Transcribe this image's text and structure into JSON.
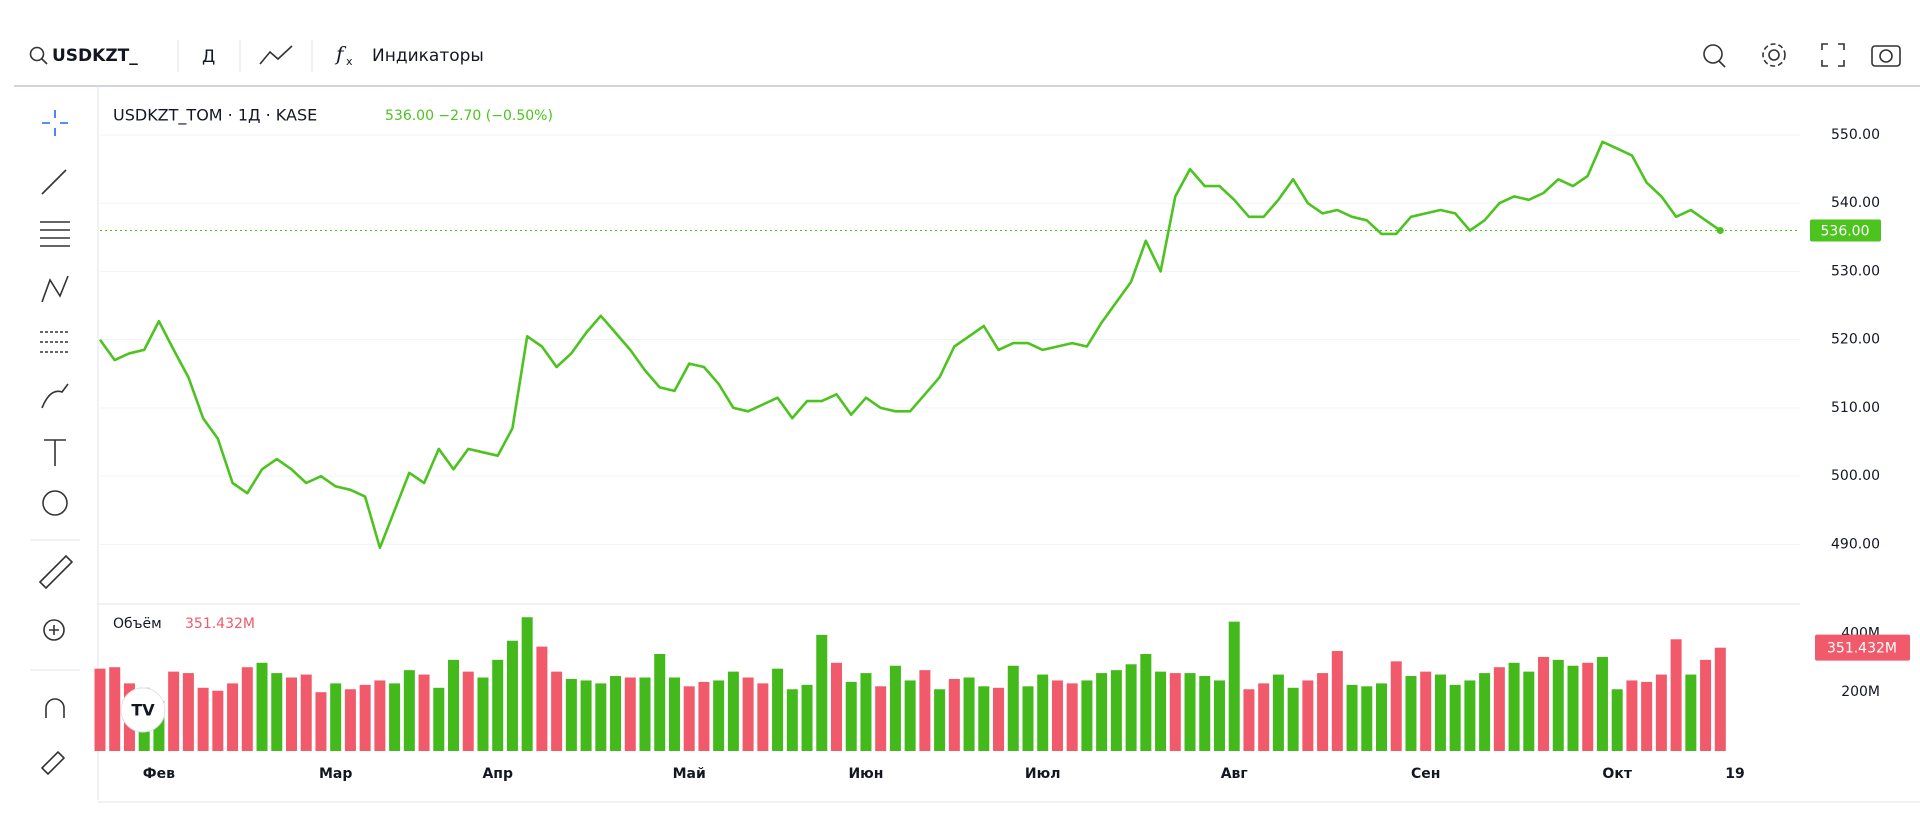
{
  "toolbar": {
    "symbol": "USDKZT_",
    "interval": "Д",
    "indicators": "Индикаторы"
  },
  "chart_data": [
    {
      "type": "line",
      "title": "USDKZT_TOM · 1Д · KASE",
      "subtitle": "536.00 −2.70 (−0.50%)",
      "color": "#4cc31f",
      "grid": true,
      "ylim": [
        482,
        556
      ],
      "yticks": [
        {
          "value": 490,
          "label": "490.00"
        },
        {
          "value": 500,
          "label": "500.00"
        },
        {
          "value": 510,
          "label": "510.00"
        },
        {
          "value": 520,
          "label": "520.00"
        },
        {
          "value": 530,
          "label": "530.00"
        },
        {
          "value": 540,
          "label": "540.00"
        },
        {
          "value": 550,
          "label": "550.00"
        }
      ],
      "last_label": {
        "value": 536,
        "label": "536.00"
      },
      "values": [
        520,
        517,
        518,
        518.5,
        522.7,
        518.5,
        514.5,
        508.5,
        505.5,
        499,
        497.5,
        501,
        502.5,
        501,
        499,
        500,
        498.5,
        498,
        497,
        489.5,
        495,
        500.5,
        499,
        504,
        501,
        504,
        503.5,
        503,
        507,
        520.5,
        519,
        516,
        518,
        521,
        523.5,
        521,
        518.5,
        515.5,
        513,
        512.5,
        516.5,
        516,
        513.5,
        510,
        509.5,
        510.5,
        511.5,
        508.5,
        511,
        511,
        512,
        509,
        511.5,
        510,
        509.5,
        509.5,
        512,
        514.5,
        519,
        520.5,
        522,
        518.5,
        519.5,
        519.5,
        518.5,
        519,
        519.5,
        519,
        522.5,
        525.5,
        528.5,
        534.5,
        530,
        541,
        545,
        542.5,
        542.5,
        540.5,
        538,
        538,
        540.5,
        543.5,
        540,
        538.5,
        539,
        538,
        537.5,
        535.5,
        535.5,
        538,
        538.5,
        539,
        538.5,
        536,
        537.5,
        540,
        541,
        540.5,
        541.5,
        543.5,
        542.5,
        544,
        549,
        548,
        547,
        543,
        541,
        538,
        539,
        537.5,
        536
      ]
    },
    {
      "type": "bar",
      "title": "Объём",
      "ylim": [
        0,
        483
      ],
      "yticks": [
        {
          "value": 200,
          "label": "200M"
        },
        {
          "value": 400,
          "label": "400M"
        }
      ],
      "last_label": {
        "value": 351.432,
        "label": "351.432M"
      },
      "categories": [
        null,
        null,
        null,
        null,
        "Фев",
        null,
        null,
        null,
        null,
        null,
        null,
        null,
        null,
        null,
        null,
        null,
        "Мар",
        null,
        null,
        null,
        null,
        null,
        null,
        null,
        null,
        null,
        null,
        "Апр",
        null,
        null,
        null,
        null,
        null,
        null,
        null,
        null,
        null,
        null,
        null,
        null,
        "Май",
        null,
        null,
        null,
        null,
        null,
        null,
        null,
        null,
        null,
        null,
        null,
        "Июн",
        null,
        null,
        null,
        null,
        null,
        null,
        null,
        null,
        null,
        null,
        null,
        "Июл",
        null,
        null,
        null,
        null,
        null,
        null,
        null,
        null,
        null,
        null,
        null,
        null,
        "Авг",
        null,
        null,
        null,
        null,
        null,
        null,
        null,
        null,
        null,
        null,
        null,
        null,
        "Сен",
        null,
        null,
        null,
        null,
        null,
        null,
        null,
        null,
        null,
        null,
        null,
        null,
        "Окт",
        null,
        null,
        null,
        null,
        null,
        null,
        null,
        "19"
      ],
      "values": [
        280,
        285,
        230,
        215,
        170,
        270,
        265,
        215,
        205,
        230,
        285,
        300,
        265,
        250,
        260,
        200,
        230,
        210,
        225,
        240,
        230,
        275,
        260,
        215,
        310,
        270,
        250,
        310,
        375,
        455,
        355,
        270,
        245,
        240,
        230,
        255,
        250,
        250,
        330,
        250,
        220,
        235,
        240,
        270,
        250,
        230,
        280,
        210,
        225,
        395,
        300,
        235,
        265,
        220,
        290,
        240,
        275,
        210,
        245,
        250,
        220,
        215,
        290,
        220,
        260,
        240,
        230,
        240,
        265,
        275,
        295,
        330,
        270,
        265,
        265,
        255,
        240,
        440,
        210,
        230,
        260,
        215,
        240,
        265,
        340,
        225,
        220,
        230,
        305,
        255,
        270,
        260,
        225,
        240,
        265,
        285,
        300,
        270,
        320,
        310,
        290,
        300,
        320,
        210,
        240,
        235,
        260,
        380,
        260,
        310,
        351.432,
        null
      ],
      "colors": [
        "#f05a6a",
        "#f05a6a",
        "#f05a6a",
        "#43b91b",
        "#43b91b",
        "#f05a6a",
        "#f05a6a",
        "#f05a6a",
        "#f05a6a",
        "#f05a6a",
        "#f05a6a",
        "#43b91b",
        "#43b91b",
        "#f05a6a",
        "#f05a6a",
        "#f05a6a",
        "#43b91b",
        "#f05a6a",
        "#f05a6a",
        "#f05a6a",
        "#43b91b",
        "#43b91b",
        "#f05a6a",
        "#43b91b",
        "#43b91b",
        "#f05a6a",
        "#43b91b",
        "#43b91b",
        "#43b91b",
        "#43b91b",
        "#f05a6a",
        "#f05a6a",
        "#43b91b",
        "#43b91b",
        "#43b91b",
        "#43b91b",
        "#f05a6a",
        "#43b91b",
        "#43b91b",
        "#43b91b",
        "#f05a6a",
        "#f05a6a",
        "#43b91b",
        "#43b91b",
        "#f05a6a",
        "#f05a6a",
        "#43b91b",
        "#43b91b",
        "#43b91b",
        "#43b91b",
        "#f05a6a",
        "#43b91b",
        "#43b91b",
        "#f05a6a",
        "#43b91b",
        "#43b91b",
        "#f05a6a",
        "#43b91b",
        "#f05a6a",
        "#43b91b",
        "#43b91b",
        "#f05a6a",
        "#43b91b",
        "#43b91b",
        "#43b91b",
        "#f05a6a",
        "#f05a6a",
        "#43b91b",
        "#43b91b",
        "#43b91b",
        "#43b91b",
        "#43b91b",
        "#43b91b",
        "#f05a6a",
        "#43b91b",
        "#43b91b",
        "#43b91b",
        "#43b91b",
        "#f05a6a",
        "#f05a6a",
        "#43b91b",
        "#43b91b",
        "#f05a6a",
        "#f05a6a",
        "#f05a6a",
        "#43b91b",
        "#43b91b",
        "#43b91b",
        "#f05a6a",
        "#43b91b",
        "#f05a6a",
        "#43b91b",
        "#43b91b",
        "#43b91b",
        "#43b91b",
        "#f05a6a",
        "#43b91b",
        "#43b91b",
        "#f05a6a",
        "#43b91b",
        "#43b91b",
        "#f05a6a",
        "#43b91b",
        "#43b91b",
        "#f05a6a",
        "#f05a6a",
        "#f05a6a",
        "#f05a6a",
        "#43b91b",
        "#f05a6a",
        "#f05a6a"
      ]
    }
  ]
}
